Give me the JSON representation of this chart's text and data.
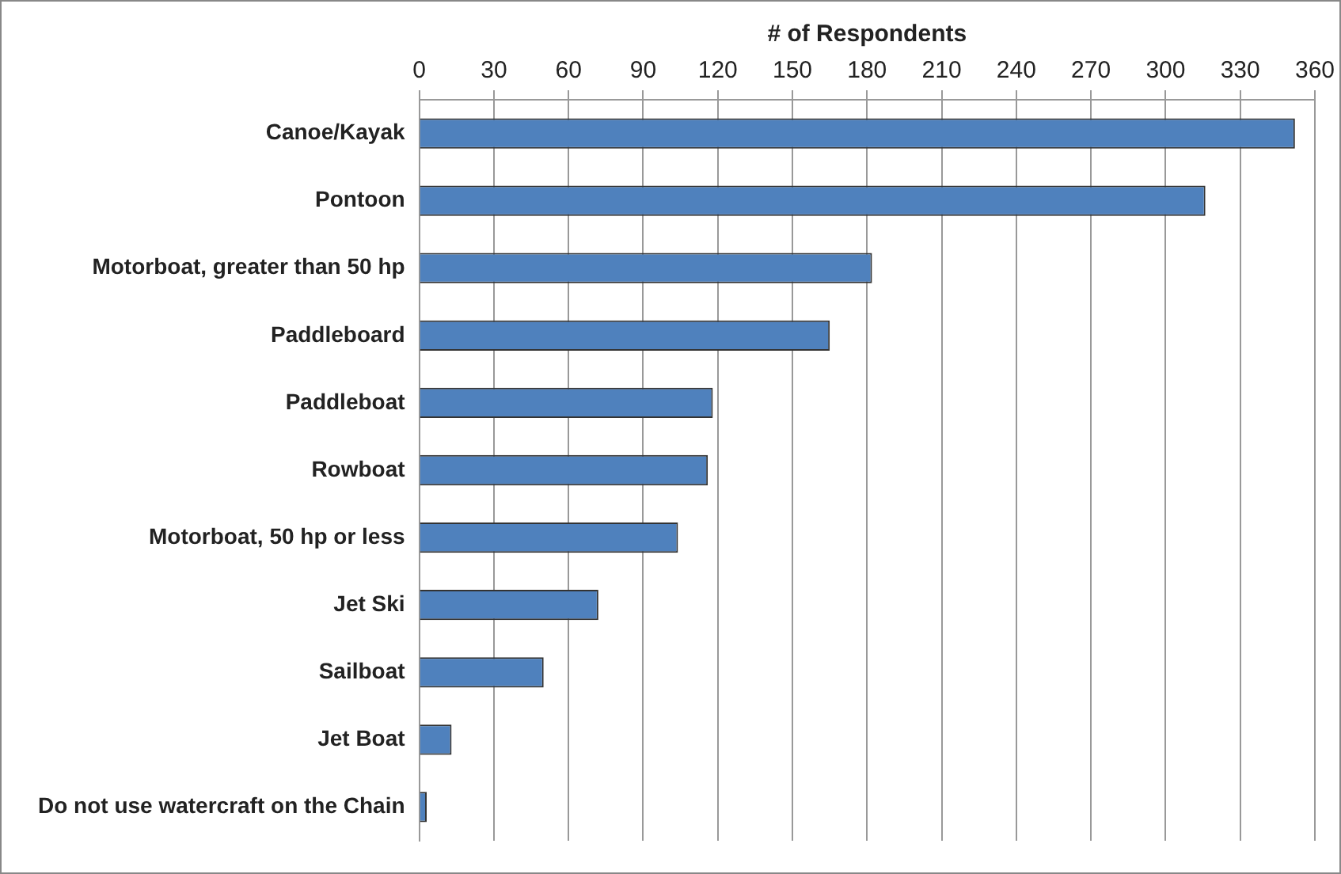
{
  "chart_data": {
    "type": "bar",
    "orientation": "horizontal",
    "xlabel": "# of Respondents",
    "categories": [
      "Canoe/Kayak",
      "Pontoon",
      "Motorboat, greater than 50 hp",
      "Paddleboard",
      "Paddleboat",
      "Rowboat",
      "Motorboat, 50 hp or less",
      "Jet Ski",
      "Sailboat",
      "Jet Boat",
      "Do not use watercraft on the Chain"
    ],
    "values": [
      352,
      316,
      182,
      165,
      118,
      116,
      104,
      72,
      50,
      13,
      3
    ],
    "color": "#4f81bd",
    "xlim": [
      0,
      360
    ],
    "xticks": [
      0,
      30,
      60,
      90,
      120,
      150,
      180,
      210,
      240,
      270,
      300,
      330,
      360
    ],
    "grid": "x",
    "legend": false
  }
}
